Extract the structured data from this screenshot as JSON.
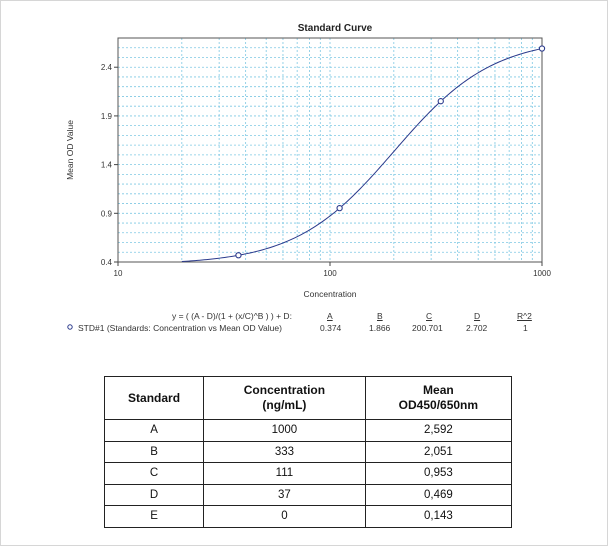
{
  "chart_data": {
    "type": "scatter",
    "title": "Standard Curve",
    "xlabel": "Concentration",
    "ylabel": "Mean OD Value",
    "x_scale": "log",
    "xlim": [
      10,
      1000
    ],
    "ylim": [
      0.4,
      2.7
    ],
    "x_ticks": [
      "10",
      "100",
      "1000"
    ],
    "y_ticks": [
      "0.4",
      "0.9",
      "1.4",
      "1.9",
      "2.4"
    ],
    "grid": true,
    "points": [
      {
        "x": 37,
        "y": 0.469
      },
      {
        "x": 111,
        "y": 0.953
      },
      {
        "x": 333,
        "y": 2.051
      },
      {
        "x": 1000,
        "y": 2.592
      }
    ],
    "fit": {
      "A": 0.374,
      "B": 1.866,
      "C": 200.701,
      "D": 2.702
    }
  },
  "equation": {
    "formula": "y = ( (A - D)/(1 + (x/C)^B ) ) + D:",
    "labels": [
      "A",
      "B",
      "C",
      "D",
      "R^2"
    ],
    "series_name": "STD#1 (Standards: Concentration vs Mean OD Value)",
    "values": [
      "0.374",
      "1.866",
      "200.701",
      "2.702",
      "1"
    ]
  },
  "table": {
    "headers": [
      "Standard",
      "Concentration (ng/mL)",
      "Mean OD450/650nm"
    ],
    "rows": [
      [
        "A",
        "1000",
        "2,592"
      ],
      [
        "B",
        "333",
        "2,051"
      ],
      [
        "C",
        "111",
        "0,953"
      ],
      [
        "D",
        "37",
        "0,469"
      ],
      [
        "E",
        "0",
        "0,143"
      ]
    ]
  }
}
